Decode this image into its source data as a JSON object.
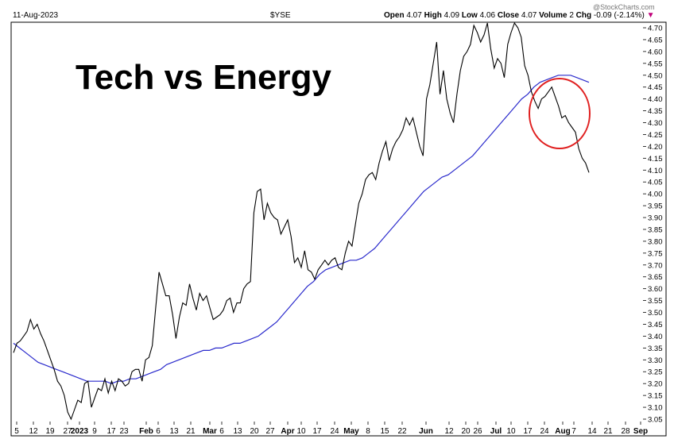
{
  "header": {
    "date": "11-Aug-2023",
    "symbol": "$YSE",
    "ohlc": [
      {
        "label": "Open",
        "value": "4.07"
      },
      {
        "label": "High",
        "value": "4.09"
      },
      {
        "label": "Low",
        "value": "4.06"
      },
      {
        "label": "Close",
        "value": "4.07"
      },
      {
        "label": "Volume",
        "value": "2"
      },
      {
        "label": "Chg",
        "value": "-0.09 (-2.14%)"
      }
    ],
    "change_marker": "▼",
    "watermark": "@StockCharts.com"
  },
  "colors": {
    "price_line": "#000000",
    "moving_average": "#2a2acc",
    "highlight_circle": "#e02020",
    "change_down": "#c0007a"
  },
  "chart_data": {
    "type": "line",
    "title": "Tech vs Energy",
    "ylim": [
      3.02,
      4.72
    ],
    "y_ticks": [
      "4.70",
      "4.65",
      "4.60",
      "4.55",
      "4.50",
      "4.45",
      "4.40",
      "4.35",
      "4.30",
      "4.25",
      "4.20",
      "4.15",
      "4.10",
      "4.05",
      "4.00",
      "3.95",
      "3.90",
      "3.85",
      "3.80",
      "3.75",
      "3.70",
      "3.65",
      "3.60",
      "3.55",
      "3.50",
      "3.45",
      "3.40",
      "3.35",
      "3.30",
      "3.25",
      "3.20",
      "3.15",
      "3.10",
      "3.05"
    ],
    "x_tick_labels": [
      {
        "text": "5",
        "bold": false
      },
      {
        "text": "12",
        "bold": false
      },
      {
        "text": "19",
        "bold": false
      },
      {
        "text": "27",
        "bold": false
      },
      {
        "text": "2023",
        "bold": true
      },
      {
        "text": "9",
        "bold": false
      },
      {
        "text": "17",
        "bold": false
      },
      {
        "text": "23",
        "bold": false
      },
      {
        "text": "Feb",
        "bold": true
      },
      {
        "text": "6",
        "bold": false
      },
      {
        "text": "13",
        "bold": false
      },
      {
        "text": "21",
        "bold": false
      },
      {
        "text": "Mar",
        "bold": true
      },
      {
        "text": "6",
        "bold": false
      },
      {
        "text": "13",
        "bold": false
      },
      {
        "text": "20",
        "bold": false
      },
      {
        "text": "27",
        "bold": false
      },
      {
        "text": "Apr",
        "bold": true
      },
      {
        "text": "10",
        "bold": false
      },
      {
        "text": "17",
        "bold": false
      },
      {
        "text": "24",
        "bold": false
      },
      {
        "text": "May",
        "bold": true
      },
      {
        "text": "8",
        "bold": false
      },
      {
        "text": "15",
        "bold": false
      },
      {
        "text": "22",
        "bold": false
      },
      {
        "text": "Jun",
        "bold": true
      },
      {
        "text": "12",
        "bold": false
      },
      {
        "text": "20",
        "bold": false
      },
      {
        "text": "26",
        "bold": false
      },
      {
        "text": "Jul",
        "bold": true
      },
      {
        "text": "10",
        "bold": false
      },
      {
        "text": "17",
        "bold": false
      },
      {
        "text": "24",
        "bold": false
      },
      {
        "text": "Aug",
        "bold": true
      },
      {
        "text": "7",
        "bold": false
      },
      {
        "text": "14",
        "bold": false
      },
      {
        "text": "21",
        "bold": false
      },
      {
        "text": "28",
        "bold": false
      },
      {
        "text": "Sep",
        "bold": true
      }
    ],
    "x_tick_pos": [
      21,
      42,
      63,
      85,
      100,
      119,
      140,
      156,
      184,
      199,
      219,
      240,
      264,
      279,
      299,
      320,
      340,
      362,
      379,
      399,
      421,
      442,
      463,
      484,
      506,
      536,
      565,
      586,
      601,
      624,
      643,
      664,
      685,
      708,
      722,
      745,
      765,
      787,
      806
    ],
    "price": [
      3.33,
      3.37,
      3.38,
      3.4,
      3.42,
      3.47,
      3.43,
      3.45,
      3.41,
      3.38,
      3.34,
      3.3,
      3.26,
      3.21,
      3.19,
      3.15,
      3.08,
      3.05,
      3.09,
      3.13,
      3.12,
      3.2,
      3.21,
      3.1,
      3.14,
      3.18,
      3.17,
      3.22,
      3.16,
      3.21,
      3.17,
      3.22,
      3.21,
      3.19,
      3.2,
      3.25,
      3.26,
      3.26,
      3.21,
      3.3,
      3.31,
      3.36,
      3.52,
      3.67,
      3.62,
      3.57,
      3.57,
      3.49,
      3.39,
      3.48,
      3.54,
      3.53,
      3.62,
      3.56,
      3.51,
      3.58,
      3.55,
      3.57,
      3.52,
      3.47,
      3.48,
      3.49,
      3.51,
      3.55,
      3.56,
      3.5,
      3.54,
      3.54,
      3.6,
      3.62,
      3.63,
      3.92,
      4.01,
      4.02,
      3.89,
      3.96,
      3.92,
      3.9,
      3.89,
      3.83,
      3.86,
      3.89,
      3.82,
      3.71,
      3.73,
      3.69,
      3.76,
      3.68,
      3.67,
      3.64,
      3.68,
      3.7,
      3.72,
      3.7,
      3.72,
      3.73,
      3.69,
      3.68,
      3.75,
      3.8,
      3.78,
      3.87,
      3.96,
      4.0,
      4.06,
      4.08,
      4.09,
      4.06,
      4.13,
      4.18,
      4.22,
      4.14,
      4.19,
      4.22,
      4.24,
      4.27,
      4.32,
      4.29,
      4.32,
      4.26,
      4.2,
      4.16,
      4.4,
      4.46,
      4.55,
      4.64,
      4.42,
      4.52,
      4.4,
      4.34,
      4.3,
      4.42,
      4.52,
      4.58,
      4.6,
      4.63,
      4.71,
      4.68,
      4.64,
      4.67,
      4.72,
      4.61,
      4.53,
      4.57,
      4.55,
      4.49,
      4.63,
      4.68,
      4.72,
      4.7,
      4.66,
      4.54,
      4.5,
      4.43,
      4.39,
      4.36,
      4.4,
      4.41,
      4.43,
      4.45,
      4.41,
      4.37,
      4.32,
      4.33,
      4.3,
      4.28,
      4.26,
      4.19,
      4.15,
      4.13,
      4.09
    ],
    "ma": [
      3.37,
      3.35,
      3.33,
      3.31,
      3.29,
      3.28,
      3.27,
      3.26,
      3.25,
      3.24,
      3.23,
      3.22,
      3.21,
      3.21,
      3.21,
      3.21,
      3.2,
      3.21,
      3.21,
      3.22,
      3.22,
      3.23,
      3.24,
      3.25,
      3.26,
      3.28,
      3.29,
      3.3,
      3.31,
      3.32,
      3.33,
      3.34,
      3.34,
      3.35,
      3.35,
      3.36,
      3.37,
      3.37,
      3.38,
      3.39,
      3.4,
      3.42,
      3.44,
      3.46,
      3.49,
      3.52,
      3.55,
      3.58,
      3.61,
      3.63,
      3.66,
      3.68,
      3.69,
      3.7,
      3.71,
      3.72,
      3.72,
      3.73,
      3.75,
      3.77,
      3.8,
      3.83,
      3.86,
      3.89,
      3.92,
      3.95,
      3.98,
      4.01,
      4.03,
      4.05,
      4.07,
      4.08,
      4.1,
      4.12,
      4.14,
      4.16,
      4.19,
      4.22,
      4.25,
      4.28,
      4.31,
      4.34,
      4.37,
      4.4,
      4.42,
      4.45,
      4.47,
      4.48,
      4.49,
      4.5,
      4.5,
      4.5,
      4.49,
      4.48,
      4.47
    ],
    "series": [
      {
        "key": "price"
      },
      {
        "key": "ma"
      }
    ]
  }
}
